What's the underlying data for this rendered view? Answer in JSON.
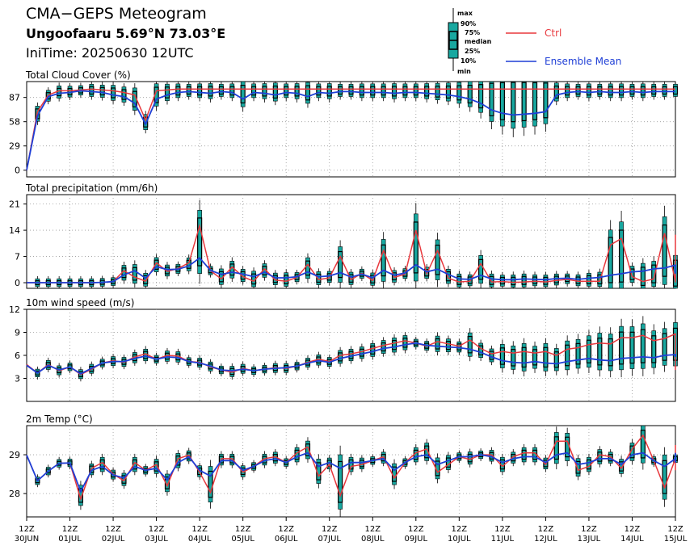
{
  "header": {
    "title": "CMA−GEPS Meteogram",
    "location": "Ungoofaaru 5.69°N 73.03°E",
    "initime": "IniTime: 20250630 12UTC"
  },
  "legend": {
    "box_labels": [
      "max",
      "90%",
      "75%",
      "median",
      "25%",
      "10%",
      "min"
    ],
    "ctrl": "Ctrl",
    "mean": "Ensemble Mean",
    "colors": {
      "ctrl": "#e8383d",
      "mean": "#1f3fd6",
      "box": "#18a8a0"
    }
  },
  "chart_data": [
    {
      "type": "box+line",
      "title": "Total Cloud Cover (%)",
      "ylim": [
        -8,
        106
      ],
      "yticks": [
        0,
        29,
        58,
        87
      ],
      "xlim": [
        0,
        15
      ],
      "step_days": 0.25,
      "ctrl": [
        0,
        70,
        90,
        95,
        95,
        96,
        97,
        96,
        95,
        93,
        90,
        60,
        95,
        96,
        97,
        97,
        97,
        97,
        97,
        97,
        97,
        97,
        97,
        97,
        97,
        97,
        97,
        97,
        97,
        97,
        97,
        97,
        97,
        97,
        97,
        97,
        97,
        97,
        97,
        97,
        97,
        97,
        97,
        97,
        97,
        97,
        97,
        97,
        97,
        97,
        97,
        97,
        97,
        97,
        97,
        97,
        97,
        97,
        97,
        97,
        97
      ],
      "mean": [
        0,
        65,
        88,
        92,
        93,
        95,
        94,
        93,
        90,
        88,
        80,
        55,
        85,
        90,
        93,
        94,
        93,
        92,
        94,
        93,
        85,
        93,
        92,
        90,
        93,
        92,
        88,
        93,
        92,
        94,
        94,
        93,
        93,
        93,
        92,
        93,
        93,
        92,
        91,
        90,
        88,
        85,
        80,
        72,
        68,
        66,
        67,
        68,
        70,
        90,
        93,
        94,
        93,
        94,
        93,
        93,
        94,
        93,
        94,
        94,
        94
      ]
    },
    {
      "type": "box+line",
      "title": "Total precipitation (mm/6h)",
      "ylim": [
        -1.5,
        23.5
      ],
      "yticks": [
        0,
        7,
        14,
        21
      ],
      "xlim": [
        0,
        15
      ],
      "step_days": 0.25,
      "ctrl": [
        0,
        0,
        0,
        0,
        0,
        0,
        0,
        0.1,
        0.3,
        3.2,
        1.5,
        0.4,
        5.3,
        3.0,
        3.8,
        5.3,
        15.2,
        3.2,
        1.0,
        4.2,
        1.6,
        0.4,
        3.7,
        0.7,
        0.4,
        1.4,
        4.9,
        0.8,
        1.3,
        7.0,
        0.8,
        2.5,
        0.6,
        8.6,
        1.4,
        2.3,
        14.0,
        2.4,
        8.6,
        1.2,
        0.2,
        0.4,
        5.1,
        0.2,
        0.3,
        0.1,
        0.2,
        0.4,
        0.2,
        0.6,
        0.9,
        0.4,
        0.4,
        0.4,
        10.1,
        11.8,
        1.6,
        0.3,
        1.0,
        13.2,
        0.4,
        0.3,
        0.1,
        0.4,
        12.8,
        0.3
      ],
      "mean": [
        0,
        0,
        0,
        0,
        0,
        0,
        0,
        0.1,
        0.3,
        2.1,
        3.2,
        1.2,
        4.3,
        3.5,
        3.6,
        4.5,
        6.6,
        3.3,
        2.2,
        2.8,
        2.3,
        1.6,
        2.8,
        1.3,
        1.3,
        1.6,
        2.9,
        1.6,
        1.8,
        2.7,
        1.5,
        2.3,
        1.3,
        3.3,
        2.0,
        2.6,
        4.8,
        2.9,
        3.6,
        2.2,
        1.0,
        0.9,
        2.0,
        1.0,
        0.8,
        0.8,
        1.0,
        0.9,
        0.8,
        1.1,
        1.2,
        0.9,
        1.2,
        1.4,
        2.0,
        2.4,
        2.9,
        3.1,
        3.7,
        3.9,
        4.7,
        4.8,
        2.4,
        2.6,
        3.5,
        3.7
      ]
    },
    {
      "type": "box+line",
      "title": "10m wind speed (m/s)",
      "ylim": [
        0,
        12
      ],
      "yticks": [
        3,
        6,
        9,
        12
      ],
      "xlim": [
        0,
        15
      ],
      "step_days": 0.25,
      "ctrl": [
        4.8,
        3.7,
        4.8,
        4.0,
        4.5,
        3.5,
        4.2,
        5.0,
        5.3,
        5.1,
        5.8,
        6.2,
        5.5,
        6.0,
        5.9,
        5.2,
        5.1,
        4.5,
        4.1,
        3.8,
        4.3,
        4.0,
        4.2,
        4.4,
        4.3,
        4.6,
        5.1,
        5.5,
        5.2,
        6.0,
        6.2,
        6.5,
        6.9,
        7.3,
        7.6,
        7.9,
        7.6,
        7.2,
        7.8,
        7.5,
        7.2,
        8.0,
        6.9,
        6.2,
        6.5,
        6.3,
        6.5,
        6.3,
        6.5,
        6.0,
        6.8,
        7.0,
        7.4,
        7.6,
        7.5,
        8.3,
        8.3,
        8.6,
        7.9,
        8.2,
        8.8,
        8.3,
        7.4,
        7.0,
        6.3,
        5.5,
        4.9,
        4.1
      ],
      "mean": [
        4.7,
        3.7,
        4.7,
        4.1,
        4.5,
        3.6,
        4.3,
        5.0,
        5.2,
        5.2,
        5.6,
        5.9,
        5.5,
        5.8,
        5.7,
        5.2,
        5.0,
        4.6,
        4.1,
        4.0,
        4.2,
        4.0,
        4.2,
        4.3,
        4.4,
        4.6,
        5.0,
        5.3,
        5.1,
        5.6,
        5.9,
        6.2,
        6.5,
        6.9,
        7.1,
        7.4,
        7.6,
        7.3,
        7.2,
        7.1,
        7.0,
        6.8,
        6.4,
        5.8,
        5.3,
        5.1,
        5.0,
        5.2,
        5.0,
        4.9,
        5.2,
        5.4,
        5.6,
        5.4,
        5.3,
        5.6,
        5.7,
        5.8,
        5.7,
        6.0,
        6.1,
        6.1,
        6.0,
        5.8,
        5.9,
        5.9,
        5.8,
        5.8
      ]
    },
    {
      "type": "box+line",
      "title": "2m Temp (°C)",
      "ylim": [
        27.4,
        29.75
      ],
      "yticks": [
        28,
        29
      ],
      "xlim": [
        0,
        15
      ],
      "step_days": 0.25,
      "ctrl": [
        28.99,
        28.33,
        28.58,
        28.78,
        28.79,
        27.86,
        28.65,
        28.8,
        28.5,
        28.33,
        28.8,
        28.6,
        28.75,
        28.2,
        28.9,
        28.99,
        28.55,
        28.03,
        28.9,
        28.9,
        28.55,
        28.7,
        28.9,
        28.95,
        28.8,
        29.05,
        29.2,
        28.45,
        28.75,
        27.95,
        28.7,
        28.75,
        28.85,
        28.95,
        28.4,
        28.8,
        29.05,
        29.15,
        28.55,
        28.75,
        28.95,
        28.88,
        29.0,
        29.0,
        28.7,
        28.95,
        29.05,
        29.05,
        28.75,
        29.35,
        29.35,
        28.6,
        28.7,
        29.0,
        28.95,
        28.65,
        29.15,
        29.5,
        28.85,
        28.15,
        28.9,
        29.25,
        29.05,
        28.6,
        29.1,
        29.25,
        28.85,
        29.2
      ],
      "mean": [
        28.99,
        28.33,
        28.58,
        28.78,
        28.79,
        28.05,
        28.6,
        28.7,
        28.48,
        28.4,
        28.7,
        28.6,
        28.65,
        28.35,
        28.8,
        28.95,
        28.6,
        28.45,
        28.85,
        28.85,
        28.6,
        28.7,
        28.85,
        28.9,
        28.8,
        28.95,
        29.05,
        28.7,
        28.8,
        28.65,
        28.8,
        28.8,
        28.85,
        28.9,
        28.6,
        28.8,
        28.95,
        29.0,
        28.75,
        28.85,
        28.95,
        28.95,
        29.0,
        28.95,
        28.8,
        28.9,
        28.95,
        28.95,
        28.8,
        29.0,
        29.05,
        28.75,
        28.8,
        28.9,
        28.9,
        28.75,
        29.0,
        29.05,
        28.85,
        28.7,
        28.9,
        29.0,
        28.95,
        28.8,
        28.95,
        29.05,
        28.95,
        29.0
      ]
    }
  ],
  "xaxis": {
    "labels": [
      {
        "hour": "12Z",
        "date": "30JUN"
      },
      {
        "hour": "12Z",
        "date": "01JUL"
      },
      {
        "hour": "12Z",
        "date": "02JUL"
      },
      {
        "hour": "12Z",
        "date": "03JUL"
      },
      {
        "hour": "12Z",
        "date": "04JUL"
      },
      {
        "hour": "12Z",
        "date": "05JUL"
      },
      {
        "hour": "12Z",
        "date": "06JUL"
      },
      {
        "hour": "12Z",
        "date": "07JUL"
      },
      {
        "hour": "12Z",
        "date": "08JUL"
      },
      {
        "hour": "12Z",
        "date": "09JUL"
      },
      {
        "hour": "12Z",
        "date": "10JUL"
      },
      {
        "hour": "12Z",
        "date": "11JUL"
      },
      {
        "hour": "12Z",
        "date": "12JUL"
      },
      {
        "hour": "12Z",
        "date": "13JUL"
      },
      {
        "hour": "12Z",
        "date": "14JUL"
      },
      {
        "hour": "12Z",
        "date": "15JUL"
      }
    ]
  }
}
